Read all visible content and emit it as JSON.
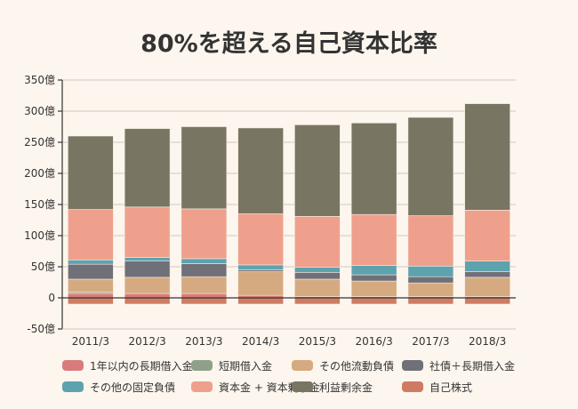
{
  "chart_data": {
    "type": "bar",
    "stacked": true,
    "title": "80%を超える自己資本比率",
    "xlabel": "",
    "ylabel": "",
    "ylim": [
      -50,
      350
    ],
    "yticks": [
      -50,
      0,
      50,
      100,
      150,
      200,
      250,
      300,
      350
    ],
    "ytick_labels": [
      "-50億",
      "0",
      "50億",
      "100億",
      "150億",
      "200億",
      "250億",
      "300億",
      "350億"
    ],
    "grid": true,
    "legend_position": "bottom",
    "categories": [
      "2011/3",
      "2012/3",
      "2013/3",
      "2014/3",
      "2015/3",
      "2016/3",
      "2017/3",
      "2018/3"
    ],
    "series": [
      {
        "name": "1年以内の長期借入金",
        "color": "#d97b7b",
        "values": [
          7,
          7,
          7,
          4,
          2,
          2,
          2,
          2
        ]
      },
      {
        "name": "短期借入金",
        "color": "#8fa08a",
        "values": [
          2,
          0,
          0,
          0,
          0,
          0,
          0,
          0
        ]
      },
      {
        "name": "その他流動負債",
        "color": "#d6aa80",
        "values": [
          21,
          26,
          27,
          38,
          28,
          25,
          22,
          31
        ]
      },
      {
        "name": "社債＋長期借入金",
        "color": "#707078",
        "values": [
          24,
          26,
          21,
          3,
          11,
          10,
          10,
          9
        ]
      },
      {
        "name": "その他の固定負債",
        "color": "#5ea2ae",
        "values": [
          7,
          6,
          8,
          8,
          8,
          15,
          17,
          17
        ]
      },
      {
        "name": "資本金 + 資本剰余金",
        "color": "#eea08c",
        "values": [
          81,
          81,
          80,
          82,
          82,
          82,
          81,
          82
        ]
      },
      {
        "name": "利益剰余金",
        "color": "#787562",
        "values": [
          118,
          126,
          132,
          138,
          147,
          147,
          158,
          171
        ]
      },
      {
        "name": "自己株式",
        "color": "#cf7b62",
        "values": [
          -10,
          -10,
          -10,
          -10,
          -10,
          -10,
          -10,
          -10
        ]
      }
    ]
  }
}
